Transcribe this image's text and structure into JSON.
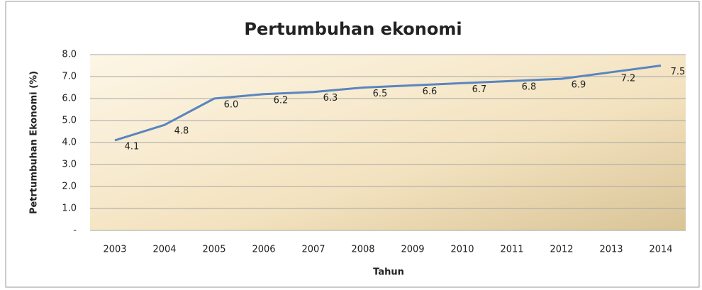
{
  "chart_data": {
    "type": "line",
    "title": "Pertumbuhan ekonomi",
    "x_label": "Tahun",
    "y_label": "Petrtumbuhan Ekonomi (%)",
    "categories": [
      "2003",
      "2004",
      "2005",
      "2006",
      "2007",
      "2008",
      "2009",
      "2010",
      "2011",
      "2012",
      "2013",
      "2014"
    ],
    "values": [
      4.1,
      4.8,
      6.0,
      6.2,
      6.3,
      6.5,
      6.6,
      6.7,
      6.8,
      6.9,
      7.2,
      7.5
    ],
    "value_labels": [
      "4.1",
      "4.8",
      "6.0",
      "6.2",
      "6.3",
      "6.5",
      "6.6",
      "6.7",
      "6.8",
      "6.9",
      "7.2",
      "7.5"
    ],
    "color": "#5a85bf",
    "ylim": [
      0,
      8
    ],
    "yticks": [
      {
        "value": 0,
        "label": "-"
      },
      {
        "value": 1,
        "label": "1.0"
      },
      {
        "value": 2,
        "label": "2.0"
      },
      {
        "value": 3,
        "label": "3.0"
      },
      {
        "value": 4,
        "label": "4.0"
      },
      {
        "value": 5,
        "label": "5.0"
      },
      {
        "value": 6,
        "label": "6.0"
      },
      {
        "value": 7,
        "label": "7.0"
      },
      {
        "value": 8,
        "label": "8.0"
      }
    ],
    "grid": true
  }
}
